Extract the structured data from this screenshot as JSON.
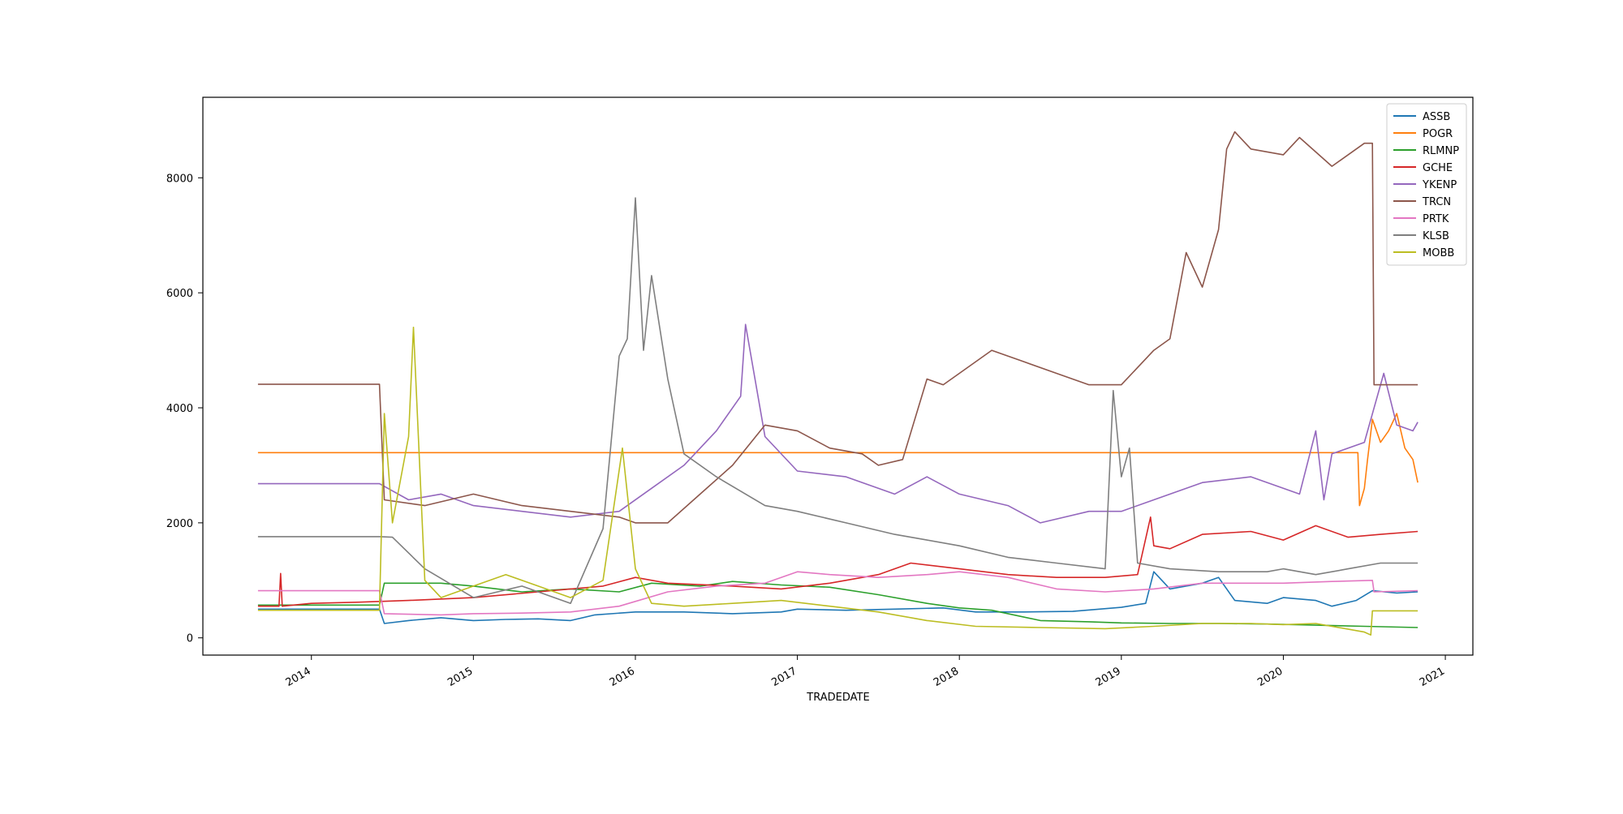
{
  "chart_data": {
    "type": "line",
    "title": "",
    "xlabel": "TRADEDATE",
    "ylabel": "",
    "xlim": [
      2013.33,
      2021.17
    ],
    "ylim": [
      -300,
      9400
    ],
    "x_ticks": [
      {
        "value": 2014,
        "label": "2014"
      },
      {
        "value": 2015,
        "label": "2015"
      },
      {
        "value": 2016,
        "label": "2016"
      },
      {
        "value": 2017,
        "label": "2017"
      },
      {
        "value": 2018,
        "label": "2018"
      },
      {
        "value": 2019,
        "label": "2019"
      },
      {
        "value": 2020,
        "label": "2020"
      },
      {
        "value": 2021,
        "label": "2021"
      }
    ],
    "y_ticks": [
      {
        "value": 0,
        "label": "0"
      },
      {
        "value": 2000,
        "label": "2000"
      },
      {
        "value": 4000,
        "label": "4000"
      },
      {
        "value": 6000,
        "label": "6000"
      },
      {
        "value": 8000,
        "label": "8000"
      }
    ],
    "grid": false,
    "legend_position": "top-right",
    "series": [
      {
        "name": "ASSB",
        "color": "#1f77b4",
        "x": [
          2013.67,
          2014.42,
          2014.45,
          2014.6,
          2014.8,
          2015.0,
          2015.2,
          2015.4,
          2015.6,
          2015.75,
          2016.0,
          2016.3,
          2016.6,
          2016.9,
          2017.0,
          2017.3,
          2017.6,
          2017.9,
          2018.1,
          2018.4,
          2018.7,
          2019.0,
          2019.15,
          2019.2,
          2019.3,
          2019.5,
          2019.6,
          2019.7,
          2019.9,
          2020.0,
          2020.2,
          2020.3,
          2020.45,
          2020.55,
          2020.7,
          2020.83
        ],
        "y": [
          500,
          500,
          250,
          300,
          350,
          300,
          320,
          330,
          300,
          400,
          450,
          450,
          420,
          450,
          500,
          480,
          500,
          520,
          450,
          450,
          460,
          530,
          600,
          1150,
          850,
          950,
          1050,
          650,
          600,
          700,
          650,
          550,
          650,
          820,
          780,
          800
        ]
      },
      {
        "name": "POGR",
        "color": "#ff7f0e",
        "x": [
          2013.67,
          2020.46,
          2020.47,
          2020.5,
          2020.52,
          2020.55,
          2020.6,
          2020.65,
          2020.7,
          2020.75,
          2020.8,
          2020.83
        ],
        "y": [
          3220,
          3220,
          2300,
          2600,
          3100,
          3800,
          3400,
          3600,
          3900,
          3300,
          3100,
          2700
        ]
      },
      {
        "name": "RLMNP",
        "color": "#2ca02c",
        "x": [
          2013.67,
          2014.42,
          2014.45,
          2014.6,
          2014.8,
          2015.0,
          2015.3,
          2015.6,
          2015.9,
          2016.1,
          2016.4,
          2016.6,
          2016.9,
          2017.2,
          2017.5,
          2017.8,
          2018.0,
          2018.2,
          2018.5,
          2018.8,
          2019.0,
          2019.3,
          2019.6,
          2019.9,
          2020.2,
          2020.5,
          2020.83
        ],
        "y": [
          570,
          570,
          950,
          950,
          950,
          900,
          800,
          850,
          800,
          950,
          900,
          980,
          920,
          880,
          750,
          600,
          520,
          480,
          300,
          280,
          260,
          250,
          250,
          240,
          220,
          200,
          180
        ]
      },
      {
        "name": "GCHE",
        "color": "#d62728",
        "x": [
          2013.67,
          2013.8,
          2013.81,
          2013.82,
          2014.0,
          2014.3,
          2014.6,
          2015.0,
          2015.4,
          2015.8,
          2016.0,
          2016.2,
          2016.6,
          2016.9,
          2017.2,
          2017.5,
          2017.7,
          2018.0,
          2018.3,
          2018.6,
          2018.9,
          2019.1,
          2019.18,
          2019.2,
          2019.3,
          2019.5,
          2019.8,
          2020.0,
          2020.2,
          2020.4,
          2020.6,
          2020.83
        ],
        "y": [
          550,
          550,
          1120,
          550,
          600,
          620,
          650,
          700,
          800,
          900,
          1050,
          950,
          900,
          850,
          950,
          1100,
          1300,
          1200,
          1100,
          1050,
          1050,
          1100,
          2100,
          1600,
          1550,
          1800,
          1850,
          1700,
          1950,
          1750,
          1800,
          1850
        ]
      },
      {
        "name": "YKENP",
        "color": "#9467bd",
        "x": [
          2013.67,
          2014.42,
          2014.6,
          2014.8,
          2015.0,
          2015.3,
          2015.6,
          2015.9,
          2016.1,
          2016.3,
          2016.5,
          2016.65,
          2016.68,
          2016.8,
          2017.0,
          2017.3,
          2017.6,
          2017.8,
          2018.0,
          2018.3,
          2018.5,
          2018.8,
          2019.0,
          2019.2,
          2019.5,
          2019.8,
          2020.0,
          2020.1,
          2020.2,
          2020.25,
          2020.3,
          2020.5,
          2020.62,
          2020.7,
          2020.8,
          2020.83
        ],
        "y": [
          2680,
          2680,
          2400,
          2500,
          2300,
          2200,
          2100,
          2200,
          2600,
          3000,
          3600,
          4200,
          5450,
          3500,
          2900,
          2800,
          2500,
          2800,
          2500,
          2300,
          2000,
          2200,
          2200,
          2400,
          2700,
          2800,
          2600,
          2500,
          3600,
          2400,
          3200,
          3400,
          4600,
          3700,
          3600,
          3750
        ]
      },
      {
        "name": "TRCN",
        "color": "#8c564b",
        "x": [
          2013.67,
          2014.42,
          2014.45,
          2014.7,
          2015.0,
          2015.3,
          2015.6,
          2015.9,
          2016.0,
          2016.2,
          2016.4,
          2016.6,
          2016.8,
          2017.0,
          2017.2,
          2017.4,
          2017.5,
          2017.65,
          2017.8,
          2017.9,
          2018.0,
          2018.2,
          2018.4,
          2018.6,
          2018.8,
          2019.0,
          2019.2,
          2019.3,
          2019.4,
          2019.5,
          2019.6,
          2019.65,
          2019.7,
          2019.8,
          2020.0,
          2020.1,
          2020.3,
          2020.5,
          2020.55,
          2020.56,
          2020.83
        ],
        "y": [
          4410,
          4410,
          2400,
          2300,
          2500,
          2300,
          2200,
          2100,
          2000,
          2000,
          2500,
          3000,
          3700,
          3600,
          3300,
          3200,
          3000,
          3100,
          4500,
          4400,
          4600,
          5000,
          4800,
          4600,
          4400,
          4400,
          5000,
          5200,
          6700,
          6100,
          7100,
          8500,
          8800,
          8500,
          8400,
          8700,
          8200,
          8600,
          8600,
          4400,
          4400
        ]
      },
      {
        "name": "PRTK",
        "color": "#e377c2",
        "x": [
          2013.67,
          2014.42,
          2014.45,
          2014.8,
          2015.0,
          2015.3,
          2015.6,
          2015.9,
          2016.2,
          2016.5,
          2016.8,
          2017.0,
          2017.2,
          2017.5,
          2017.8,
          2018.0,
          2018.3,
          2018.6,
          2018.9,
          2019.2,
          2019.5,
          2019.8,
          2020.0,
          2020.3,
          2020.55,
          2020.56,
          2020.83
        ],
        "y": [
          820,
          820,
          420,
          400,
          420,
          430,
          450,
          550,
          800,
          900,
          950,
          1150,
          1100,
          1050,
          1100,
          1150,
          1050,
          850,
          800,
          850,
          950,
          950,
          950,
          980,
          1000,
          800,
          820
        ]
      },
      {
        "name": "KLSB",
        "color": "#7f7f7f",
        "x": [
          2013.67,
          2014.42,
          2014.5,
          2014.7,
          2015.0,
          2015.3,
          2015.6,
          2015.8,
          2015.9,
          2015.95,
          2016.0,
          2016.05,
          2016.1,
          2016.2,
          2016.3,
          2016.5,
          2016.8,
          2017.0,
          2017.3,
          2017.6,
          2017.8,
          2018.0,
          2018.3,
          2018.6,
          2018.9,
          2018.95,
          2019.0,
          2019.05,
          2019.1,
          2019.3,
          2019.6,
          2019.9,
          2020.0,
          2020.2,
          2020.4,
          2020.6,
          2020.83
        ],
        "y": [
          1760,
          1760,
          1750,
          1200,
          700,
          900,
          600,
          1900,
          4900,
          5200,
          7650,
          5000,
          6300,
          4500,
          3200,
          2800,
          2300,
          2200,
          2000,
          1800,
          1700,
          1600,
          1400,
          1300,
          1200,
          4300,
          2800,
          3300,
          1300,
          1200,
          1150,
          1150,
          1200,
          1100,
          1200,
          1300,
          1300
        ]
      },
      {
        "name": "MOBB",
        "color": "#bcbd22",
        "x": [
          2013.67,
          2014.42,
          2014.45,
          2014.5,
          2014.6,
          2014.63,
          2014.7,
          2014.8,
          2015.0,
          2015.2,
          2015.4,
          2015.6,
          2015.8,
          2015.92,
          2016.0,
          2016.1,
          2016.3,
          2016.6,
          2016.9,
          2017.2,
          2017.5,
          2017.8,
          2018.1,
          2018.5,
          2018.9,
          2019.2,
          2019.5,
          2019.8,
          2020.0,
          2020.2,
          2020.5,
          2020.54,
          2020.55,
          2020.83
        ],
        "y": [
          480,
          480,
          3900,
          2000,
          3500,
          5400,
          1000,
          700,
          900,
          1100,
          900,
          700,
          1000,
          3300,
          1200,
          600,
          550,
          600,
          650,
          550,
          450,
          300,
          200,
          180,
          160,
          200,
          250,
          250,
          230,
          250,
          100,
          50,
          470,
          470
        ]
      }
    ]
  }
}
